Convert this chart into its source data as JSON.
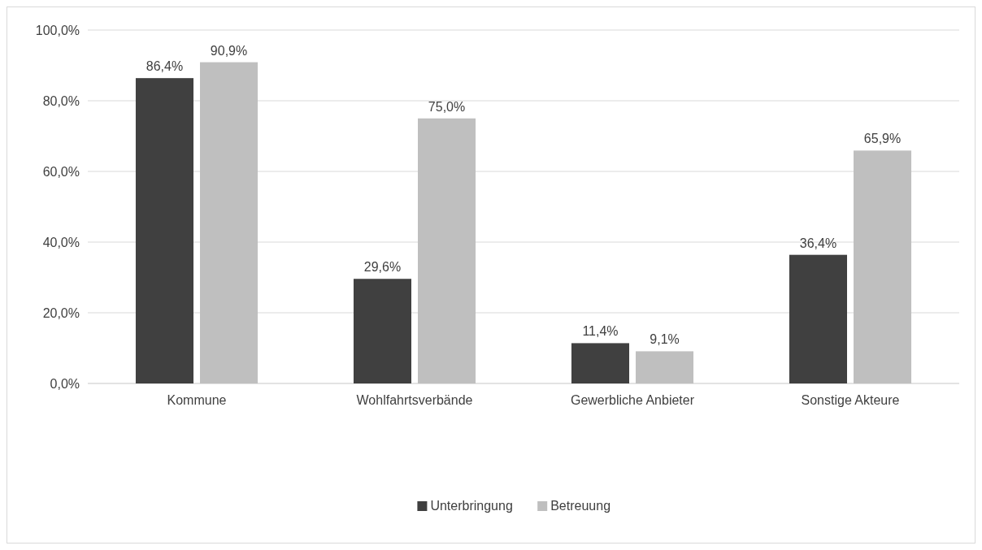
{
  "chart_data": {
    "type": "bar",
    "categories": [
      "Kommune",
      "Wohlfahrtsverbände",
      "Gewerbliche Anbieter",
      "Sonstige Akteure"
    ],
    "series": [
      {
        "name": "Unterbringung",
        "color": "#404040",
        "values": [
          86.4,
          29.6,
          11.4,
          36.4
        ],
        "value_labels": [
          "86,4%",
          "29,6%",
          "11,4%",
          "36,4%"
        ]
      },
      {
        "name": "Betreuung",
        "color": "#bfbfbf",
        "values": [
          90.9,
          75.0,
          9.1,
          65.9
        ],
        "value_labels": [
          "90,9%",
          "75,0%",
          "9,1%",
          "65,9%"
        ]
      }
    ],
    "ylim": [
      0,
      100
    ],
    "yticks": [
      {
        "value": 0,
        "label": "0,0%"
      },
      {
        "value": 20,
        "label": "20,0%"
      },
      {
        "value": 40,
        "label": "40,0%"
      },
      {
        "value": 60,
        "label": "60,0%"
      },
      {
        "value": 80,
        "label": "80,0%"
      },
      {
        "value": 100,
        "label": "100,0%"
      }
    ],
    "grid": "y",
    "legend": "bottom"
  }
}
